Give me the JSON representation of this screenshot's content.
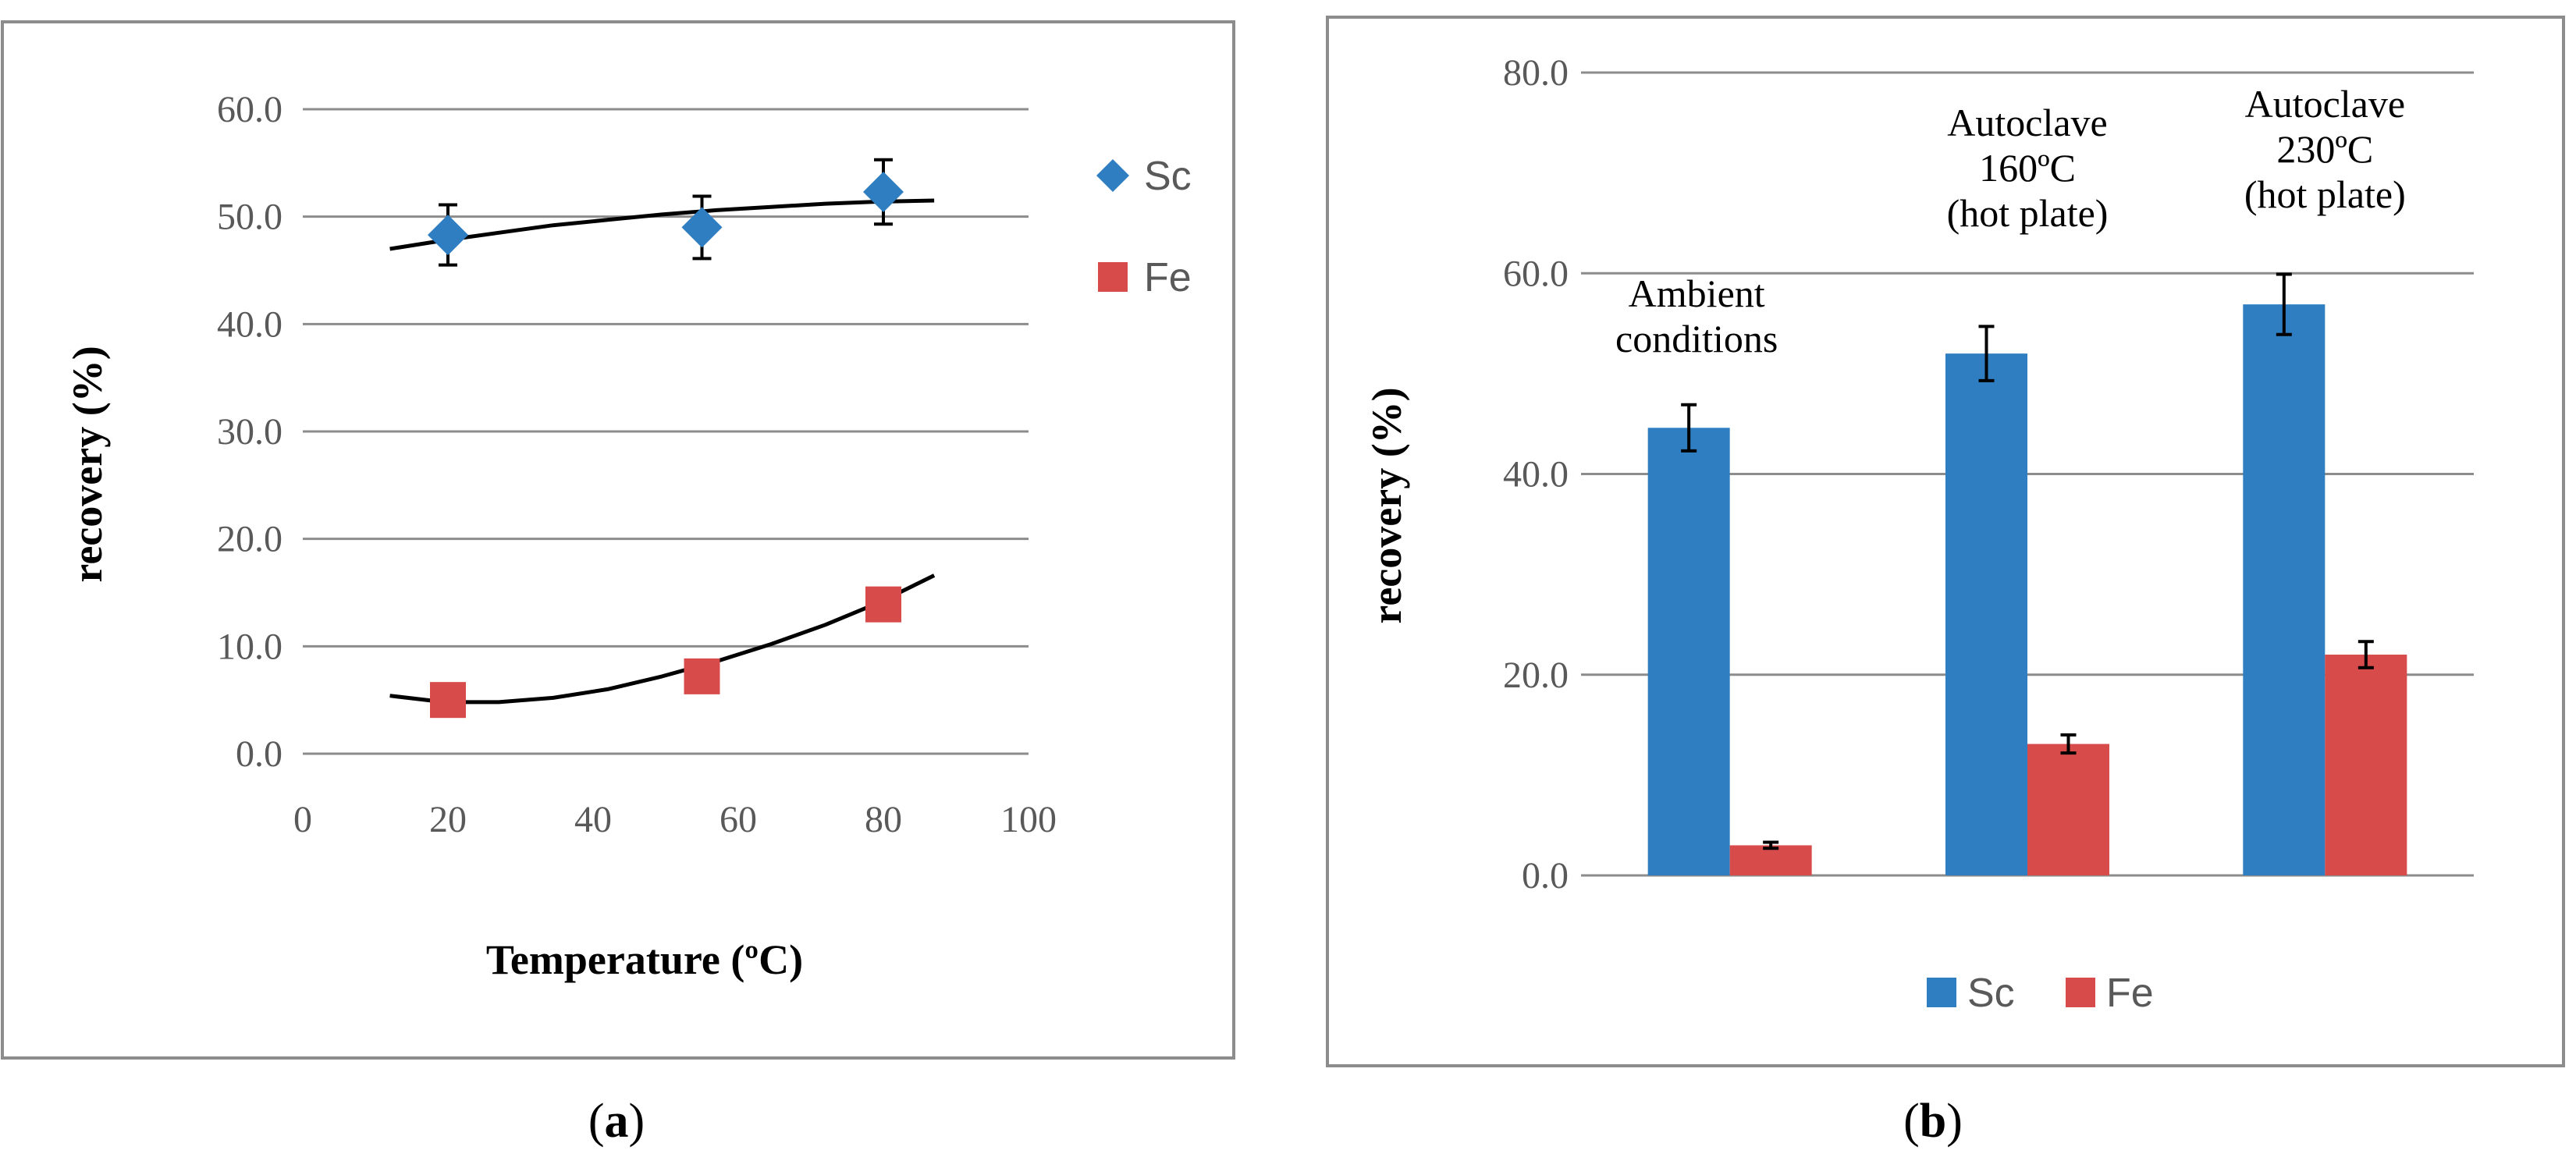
{
  "panels": [
    {
      "label": "a"
    },
    {
      "label": "b"
    }
  ],
  "chart_data": [
    {
      "type": "scatter",
      "xlabel": "Temperature (ºC)",
      "ylabel": "recovery (%)",
      "xlim": [
        0,
        100
      ],
      "ylim": [
        0,
        60
      ],
      "xticks": [
        "0",
        "20",
        "40",
        "60",
        "80",
        "100"
      ],
      "yticks": [
        "0.0",
        "10.0",
        "20.0",
        "30.0",
        "40.0",
        "50.0",
        "60.0"
      ],
      "grid": "horizontal",
      "legend_position": "right",
      "series": [
        {
          "name": "Sc",
          "color": "#2E7EC1",
          "marker": "diamond",
          "x": [
            20,
            55,
            80
          ],
          "y": [
            48.3,
            49.0,
            52.3
          ],
          "error": [
            2.8,
            2.9,
            3.0
          ],
          "trendline": {
            "type": "polynomial",
            "x_range": [
              12,
              87
            ],
            "y": [
              47.0,
              47.8,
              48.5,
              49.2,
              49.7,
              50.2,
              50.6,
              50.9,
              51.2,
              51.4,
              51.5
            ]
          }
        },
        {
          "name": "Fe",
          "color": "#D84B4B",
          "marker": "square",
          "x": [
            20,
            55,
            80
          ],
          "y": [
            5.0,
            7.2,
            13.9
          ],
          "error": [
            0,
            0,
            0
          ],
          "trendline": {
            "type": "polynomial",
            "x_range": [
              12,
              87
            ],
            "y": [
              5.4,
              4.8,
              4.8,
              5.2,
              6.0,
              7.2,
              8.6,
              10.2,
              12.0,
              14.1,
              16.6
            ]
          }
        }
      ]
    },
    {
      "type": "bar",
      "ylabel": "recovery (%)",
      "ylim": [
        0,
        80
      ],
      "yticks": [
        "0.0",
        "20.0",
        "40.0",
        "60.0",
        "80.0"
      ],
      "grid": "horizontal",
      "legend_position": "bottom",
      "categories": [
        {
          "lines": [
            "Ambient",
            "conditions"
          ]
        },
        {
          "lines": [
            "Autoclave",
            "160ºC",
            "(hot plate)"
          ]
        },
        {
          "lines": [
            "Autoclave",
            "230ºC",
            "(hot plate)"
          ]
        }
      ],
      "series": [
        {
          "name": "Sc",
          "color": "#2E7EC1",
          "values": [
            44.6,
            52.0,
            56.9
          ],
          "error": [
            2.3,
            2.7,
            3.0
          ]
        },
        {
          "name": "Fe",
          "color": "#D84B4B",
          "values": [
            3.0,
            13.1,
            22.0
          ],
          "error": [
            0.3,
            0.9,
            1.3
          ]
        }
      ]
    }
  ]
}
